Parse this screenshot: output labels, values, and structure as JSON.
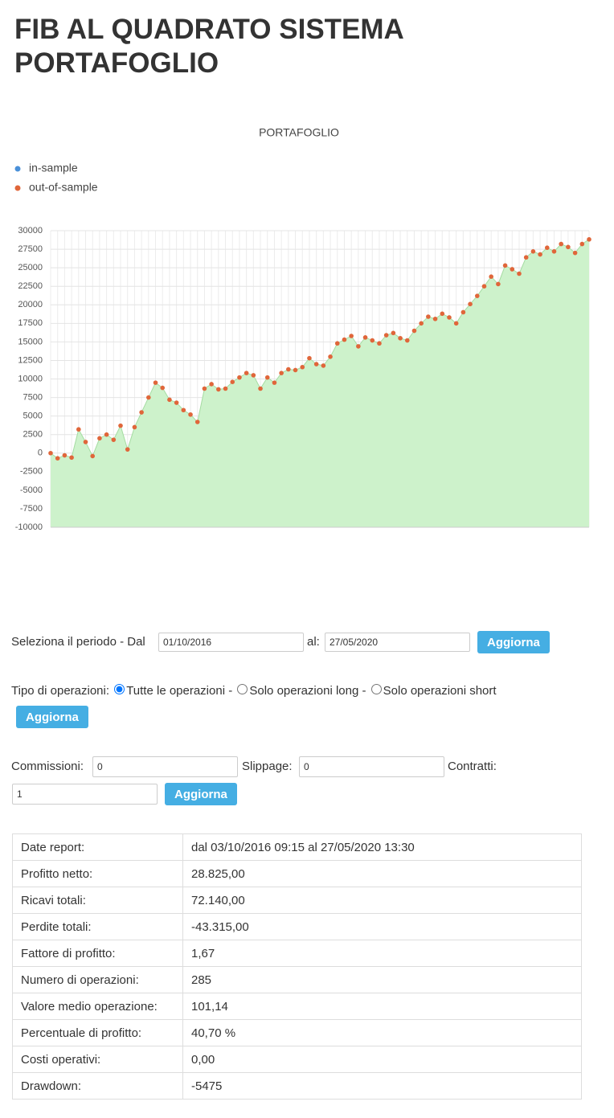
{
  "header": {
    "title": "FIB AL QUADRATO SISTEMA PORTAFOGLIO"
  },
  "chart_data": {
    "type": "line",
    "title": "PORTAFOGLIO",
    "series": [
      {
        "name": "in-sample",
        "color": "#4a90d9",
        "values": [
          null,
          null,
          null,
          null,
          null,
          null,
          null,
          null,
          null,
          null,
          null,
          null,
          null,
          null,
          null,
          null,
          null,
          null,
          null,
          null,
          null,
          null,
          null,
          null,
          null,
          null,
          null,
          null,
          null,
          null,
          null,
          null,
          null,
          null,
          null,
          null,
          null,
          null,
          null,
          null,
          null,
          null,
          null,
          null,
          null,
          null,
          null,
          null,
          null,
          null,
          null,
          null,
          null,
          null,
          null,
          null,
          null,
          null,
          null,
          null,
          null,
          null,
          null,
          null,
          null,
          null,
          null,
          null,
          null,
          null,
          null,
          null,
          null,
          null,
          null,
          null,
          null,
          null
        ]
      },
      {
        "name": "out-of-sample",
        "color": "#e0663a",
        "values": [
          0,
          -700,
          -300,
          -600,
          3200,
          1500,
          -400,
          2000,
          2500,
          1800,
          3700,
          500,
          3500,
          5500,
          7500,
          9500,
          8800,
          7200,
          6800,
          5800,
          5200,
          4200,
          8700,
          9300,
          8600,
          8700,
          9600,
          10200,
          10800,
          10500,
          8700,
          10200,
          9500,
          10800,
          11300,
          11200,
          11600,
          12800,
          12000,
          11800,
          13000,
          14800,
          15300,
          15800,
          14400,
          15600,
          15200,
          14800,
          15900,
          16200,
          15500,
          15200,
          16500,
          17500,
          18400,
          18100,
          18800,
          18300,
          17500,
          19000,
          20100,
          21200,
          22500,
          23800,
          22800,
          25300,
          24800,
          24200,
          26400,
          27200,
          26800,
          27700,
          27200,
          28200,
          27800,
          27000,
          28200,
          28825
        ]
      }
    ],
    "area_color": "#cdf2cb",
    "ylim": [
      -10000,
      30000
    ],
    "yticks": [
      -10000,
      -7500,
      -5000,
      -2500,
      0,
      2500,
      5000,
      7500,
      10000,
      12500,
      15000,
      17500,
      20000,
      22500,
      25000,
      27500,
      30000
    ],
    "grid": true
  },
  "period_form": {
    "label": "Seleziona il periodo - Dal",
    "from": "01/10/2016",
    "to_label": "al:",
    "to": "27/05/2020",
    "button": "Aggiorna"
  },
  "operations_form": {
    "label": "Tipo di operazioni:",
    "options": [
      "Tutte le operazioni -",
      "Solo operazioni long -",
      "Solo operazioni short"
    ],
    "button": "Aggiorna"
  },
  "costs_form": {
    "commissions_label": "Commissioni:",
    "commissions": "0",
    "slippage_label": "Slippage:",
    "slippage": "0",
    "contracts_label": "Contratti:",
    "contracts": "1",
    "button": "Aggiorna"
  },
  "report": {
    "rows": [
      [
        "Date report:",
        "dal 03/10/2016 09:15 al 27/05/2020 13:30"
      ],
      [
        "Profitto netto:",
        "28.825,00"
      ],
      [
        "Ricavi totali:",
        "72.140,00"
      ],
      [
        "Perdite totali:",
        "-43.315,00"
      ],
      [
        "Fattore di profitto:",
        "1,67"
      ],
      [
        "Numero di operazioni:",
        "285"
      ],
      [
        "Valore medio operazione:",
        "101,14"
      ],
      [
        "Percentuale di profitto:",
        "40,70 %"
      ],
      [
        "Costi operativi:",
        "0,00"
      ],
      [
        "Drawdown:",
        "-5475"
      ]
    ]
  }
}
